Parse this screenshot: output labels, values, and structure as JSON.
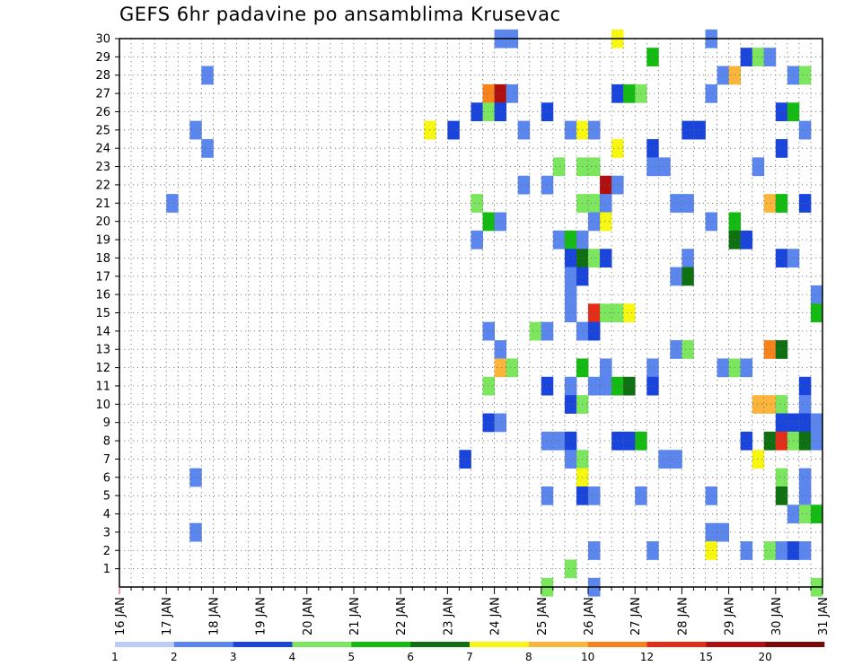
{
  "chart_data": {
    "type": "heatmap",
    "title": "GEFS 6hr padavine po ansamblima Krusevac",
    "xlabel": "",
    "ylabel": "",
    "x_tick_labels": [
      "16 JAN",
      "17 JAN",
      "18 JAN",
      "19 JAN",
      "20 JAN",
      "21 JAN",
      "22 JAN",
      "23 JAN",
      "24 JAN",
      "25 JAN",
      "26 JAN",
      "27 JAN",
      "28 JAN",
      "29 JAN",
      "30 JAN",
      "31 JAN"
    ],
    "xlim_days": [
      16,
      31
    ],
    "time_step_hours": 6,
    "y_tick_labels": [
      "1",
      "2",
      "3",
      "4",
      "5",
      "6",
      "7",
      "8",
      "9",
      "10",
      "11",
      "12",
      "13",
      "14",
      "15",
      "16",
      "17",
      "18",
      "19",
      "20",
      "21",
      "22",
      "23",
      "24",
      "25",
      "26",
      "27",
      "28",
      "29",
      "30"
    ],
    "ylim": [
      0,
      30
    ],
    "grid": true,
    "legend_placement": "bottom",
    "colorbar": {
      "colors": [
        "#bcccf5",
        "#5b86ee",
        "#1a45dd",
        "#7ce65f",
        "#13bb13",
        "#0e7010",
        "#f7f712",
        "#fbb53b",
        "#f7821c",
        "#e42d18",
        "#b00f0f",
        "#7a0a0a"
      ],
      "labels": [
        "1",
        "2",
        "3",
        "4",
        "5",
        "6",
        "7",
        "8",
        "10",
        "12",
        "15",
        "20"
      ]
    },
    "cells": [
      [
        24,
        30,
        1
      ],
      [
        24.25,
        30,
        1
      ],
      [
        26.5,
        30,
        6
      ],
      [
        28.5,
        30,
        1
      ],
      [
        27.25,
        29,
        4
      ],
      [
        29.25,
        29,
        2
      ],
      [
        29.5,
        29,
        3
      ],
      [
        29.75,
        29,
        1
      ],
      [
        17.75,
        28,
        1
      ],
      [
        28.75,
        28,
        1
      ],
      [
        29,
        28,
        7
      ],
      [
        30.25,
        28,
        1
      ],
      [
        30.5,
        28,
        3
      ],
      [
        23.75,
        27,
        8
      ],
      [
        24,
        27,
        10
      ],
      [
        24.25,
        27,
        1
      ],
      [
        26.5,
        27,
        2
      ],
      [
        26.75,
        27,
        4
      ],
      [
        27,
        27,
        3
      ],
      [
        28.5,
        27,
        1
      ],
      [
        23.5,
        26,
        2
      ],
      [
        23.75,
        26,
        3
      ],
      [
        24,
        26,
        2
      ],
      [
        25,
        26,
        2
      ],
      [
        30,
        26,
        2
      ],
      [
        30.25,
        26,
        4
      ],
      [
        17.5,
        25,
        1
      ],
      [
        22.5,
        25,
        6
      ],
      [
        23,
        25,
        2
      ],
      [
        24.5,
        25,
        1
      ],
      [
        25.5,
        25,
        1
      ],
      [
        25.75,
        25,
        6
      ],
      [
        26,
        25,
        1
      ],
      [
        28,
        25,
        2
      ],
      [
        28.25,
        25,
        2
      ],
      [
        30.5,
        25,
        1
      ],
      [
        17.75,
        24,
        1
      ],
      [
        26.5,
        24,
        6
      ],
      [
        27.25,
        24,
        2
      ],
      [
        30,
        24,
        2
      ],
      [
        25.25,
        23,
        3
      ],
      [
        25.75,
        23,
        3
      ],
      [
        26,
        23,
        3
      ],
      [
        27.25,
        23,
        1
      ],
      [
        27.5,
        23,
        1
      ],
      [
        29.5,
        23,
        1
      ],
      [
        24.5,
        22,
        1
      ],
      [
        25,
        22,
        1
      ],
      [
        26.25,
        22,
        10
      ],
      [
        26.5,
        22,
        1
      ],
      [
        17,
        21,
        1
      ],
      [
        23.5,
        21,
        3
      ],
      [
        25.75,
        21,
        3
      ],
      [
        26,
        21,
        3
      ],
      [
        26.25,
        21,
        1
      ],
      [
        27.75,
        21,
        1
      ],
      [
        28,
        21,
        1
      ],
      [
        29.75,
        21,
        7
      ],
      [
        30,
        21,
        4
      ],
      [
        30.5,
        21,
        2
      ],
      [
        23.75,
        20,
        4
      ],
      [
        24,
        20,
        1
      ],
      [
        26,
        20,
        1
      ],
      [
        26.25,
        20,
        6
      ],
      [
        28.5,
        20,
        1
      ],
      [
        29,
        20,
        4
      ],
      [
        23.5,
        19,
        1
      ],
      [
        25.25,
        19,
        1
      ],
      [
        25.5,
        19,
        4
      ],
      [
        25.75,
        19,
        1
      ],
      [
        29,
        19,
        5
      ],
      [
        29.25,
        19,
        2
      ],
      [
        25.5,
        18,
        2
      ],
      [
        25.75,
        18,
        5
      ],
      [
        26,
        18,
        3
      ],
      [
        26.25,
        18,
        2
      ],
      [
        28,
        18,
        1
      ],
      [
        30,
        18,
        2
      ],
      [
        30.25,
        18,
        1
      ],
      [
        25.5,
        17,
        1
      ],
      [
        25.75,
        17,
        2
      ],
      [
        27.75,
        17,
        1
      ],
      [
        28,
        17,
        5
      ],
      [
        25.5,
        16,
        1
      ],
      [
        30.75,
        16,
        1
      ],
      [
        25.5,
        15,
        1
      ],
      [
        26,
        15,
        9
      ],
      [
        26.25,
        15,
        3
      ],
      [
        26.5,
        15,
        3
      ],
      [
        26.75,
        15,
        6
      ],
      [
        30.75,
        15,
        4
      ],
      [
        23.75,
        14,
        1
      ],
      [
        24.75,
        14,
        3
      ],
      [
        25,
        14,
        1
      ],
      [
        25.75,
        14,
        1
      ],
      [
        26,
        14,
        2
      ],
      [
        24,
        13,
        1
      ],
      [
        27.75,
        13,
        1
      ],
      [
        28,
        13,
        3
      ],
      [
        29.75,
        13,
        8
      ],
      [
        30,
        13,
        5
      ],
      [
        24,
        12,
        7
      ],
      [
        24.25,
        12,
        3
      ],
      [
        25.75,
        12,
        4
      ],
      [
        26.25,
        12,
        1
      ],
      [
        27.25,
        12,
        1
      ],
      [
        28.75,
        12,
        1
      ],
      [
        29,
        12,
        3
      ],
      [
        29.25,
        12,
        1
      ],
      [
        23.75,
        11,
        3
      ],
      [
        25,
        11,
        2
      ],
      [
        25.5,
        11,
        1
      ],
      [
        26,
        11,
        1
      ],
      [
        26.25,
        11,
        1
      ],
      [
        26.5,
        11,
        4
      ],
      [
        26.75,
        11,
        5
      ],
      [
        27.25,
        11,
        2
      ],
      [
        30.5,
        11,
        2
      ],
      [
        25.5,
        10,
        2
      ],
      [
        25.75,
        10,
        3
      ],
      [
        29.5,
        10,
        7
      ],
      [
        29.75,
        10,
        7
      ],
      [
        30,
        10,
        3
      ],
      [
        30.5,
        10,
        1
      ],
      [
        23.75,
        9,
        2
      ],
      [
        24,
        9,
        1
      ],
      [
        30,
        9,
        2
      ],
      [
        30.25,
        9,
        2
      ],
      [
        30.5,
        9,
        2
      ],
      [
        30.75,
        9,
        1
      ],
      [
        25,
        8,
        1
      ],
      [
        25.25,
        8,
        1
      ],
      [
        25.5,
        8,
        2
      ],
      [
        26.5,
        8,
        2
      ],
      [
        26.75,
        8,
        2
      ],
      [
        27,
        8,
        4
      ],
      [
        29.25,
        8,
        2
      ],
      [
        29.75,
        8,
        5
      ],
      [
        30,
        8,
        9
      ],
      [
        30.25,
        8,
        3
      ],
      [
        30.5,
        8,
        5
      ],
      [
        30.75,
        8,
        1
      ],
      [
        23.25,
        7,
        2
      ],
      [
        25.5,
        7,
        1
      ],
      [
        25.75,
        7,
        3
      ],
      [
        27.5,
        7,
        1
      ],
      [
        27.75,
        7,
        1
      ],
      [
        29.5,
        7,
        6
      ],
      [
        17.5,
        6,
        1
      ],
      [
        25.75,
        6,
        6
      ],
      [
        30,
        6,
        3
      ],
      [
        30.5,
        6,
        1
      ],
      [
        25,
        5,
        1
      ],
      [
        25.75,
        5,
        2
      ],
      [
        26,
        5,
        1
      ],
      [
        27,
        5,
        1
      ],
      [
        28.5,
        5,
        1
      ],
      [
        30,
        5,
        5
      ],
      [
        30.5,
        5,
        1
      ],
      [
        30.25,
        4,
        1
      ],
      [
        30.5,
        4,
        3
      ],
      [
        30.75,
        4,
        4
      ],
      [
        17.5,
        3,
        1
      ],
      [
        28.5,
        3,
        1
      ],
      [
        28.75,
        3,
        1
      ],
      [
        26,
        2,
        1
      ],
      [
        27.25,
        2,
        1
      ],
      [
        28.5,
        2,
        6
      ],
      [
        29.25,
        2,
        1
      ],
      [
        29.75,
        2,
        3
      ],
      [
        30,
        2,
        1
      ],
      [
        30.25,
        2,
        2
      ],
      [
        30.5,
        2,
        1
      ],
      [
        25.5,
        1,
        3
      ],
      [
        25,
        0,
        3
      ],
      [
        26,
        0,
        1
      ],
      [
        30.75,
        0,
        3
      ]
    ]
  }
}
